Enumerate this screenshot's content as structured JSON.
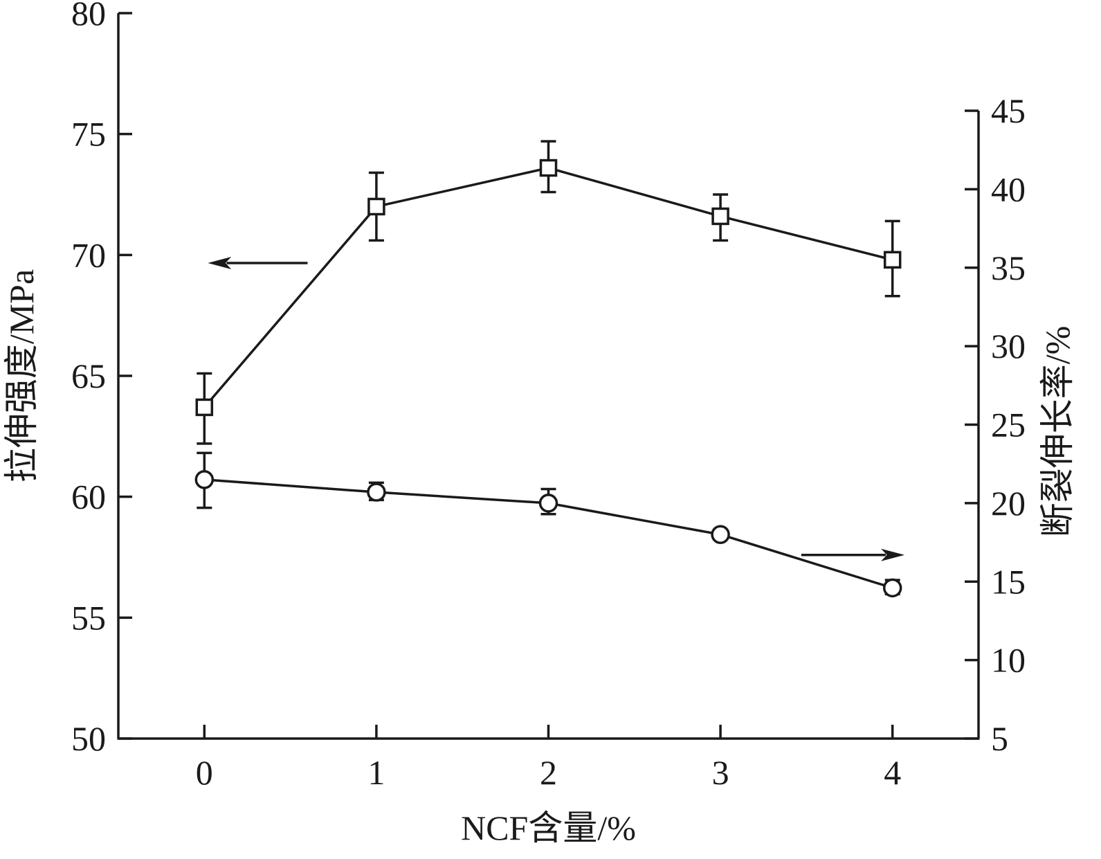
{
  "chart_data": {
    "type": "line",
    "x": [
      0,
      1,
      2,
      3,
      4
    ],
    "xticks": [
      "0",
      "1",
      "2",
      "3",
      "4"
    ],
    "xlabel": "NCF含量/%",
    "xlim": [
      -0.5,
      4.5
    ],
    "ylabel_left": "拉伸强度/MPa",
    "ylim_left": [
      50,
      80
    ],
    "yticks_left": [
      50,
      55,
      60,
      65,
      70,
      75,
      80
    ],
    "ylabel_right": "断裂伸长率/%",
    "ylim_right": [
      5,
      45
    ],
    "yticks_right": [
      5,
      10,
      15,
      20,
      25,
      30,
      35,
      40,
      45
    ],
    "grid": false,
    "series": [
      {
        "axis": "left",
        "marker": "square",
        "values": [
          63.7,
          72.0,
          73.6,
          71.6,
          69.8
        ],
        "error_low": [
          62.2,
          70.6,
          72.6,
          70.6,
          68.3
        ],
        "error_high": [
          65.1,
          73.4,
          74.7,
          72.5,
          71.4
        ]
      },
      {
        "axis": "right",
        "marker": "circle",
        "values": [
          21.5,
          20.7,
          20.0,
          18.0,
          14.6
        ],
        "error_low": [
          19.7,
          20.2,
          19.3,
          17.8,
          14.2
        ],
        "error_high": [
          23.2,
          21.3,
          20.9,
          18.3,
          15.1
        ]
      }
    ],
    "annotations": [
      {
        "type": "arrow",
        "direction": "left",
        "points_to_axis": "left",
        "x_from": 0.6,
        "x_to": 0.02,
        "y_right_value": 35.3
      },
      {
        "type": "arrow",
        "direction": "right",
        "points_to_axis": "right",
        "x_from": 3.47,
        "x_to": 4.07,
        "y_right_value": 16.7
      }
    ],
    "colors": {
      "line": "#1a1a1a",
      "marker_fill": "#ffffff"
    }
  }
}
